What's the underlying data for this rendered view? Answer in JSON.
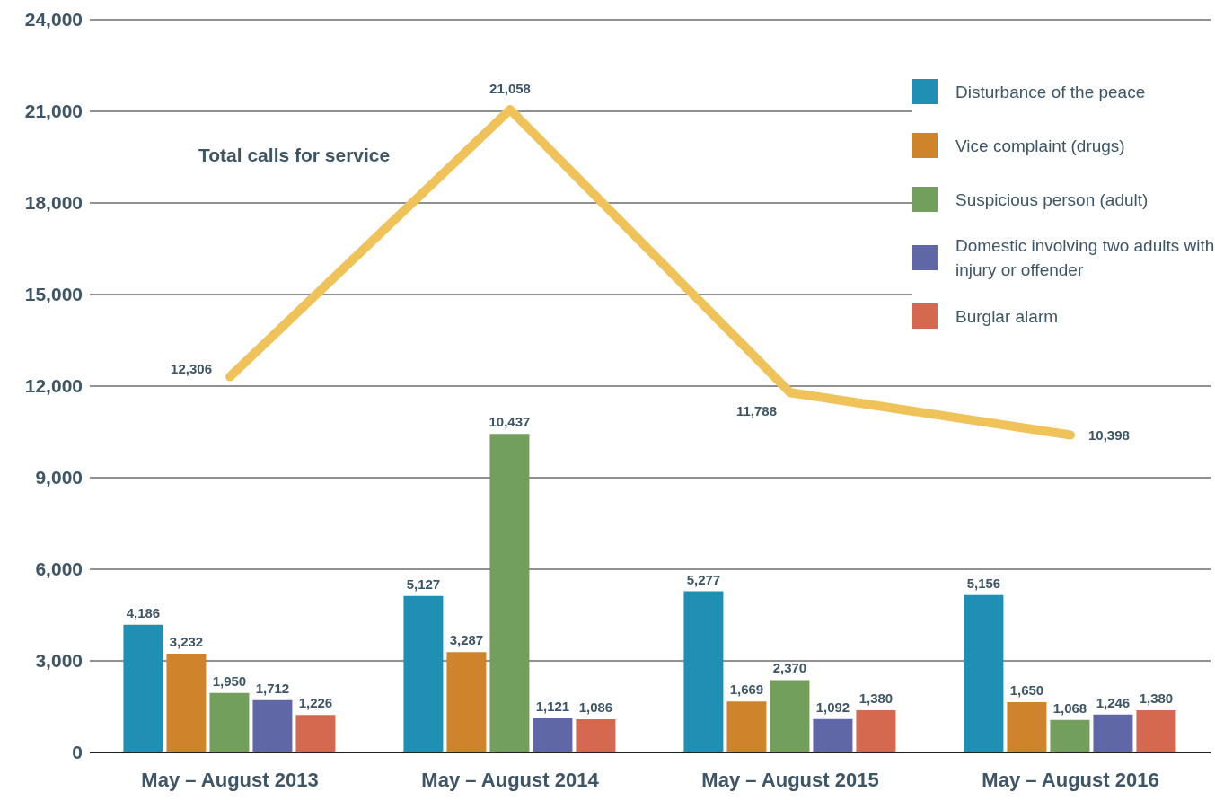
{
  "chart_data": {
    "type": "bar",
    "categories": [
      "May – August 2013",
      "May – August 2014",
      "May – August 2015",
      "May – August 2016"
    ],
    "series": [
      {
        "name": "Disturbance of the peace",
        "color": "#1f8fb3",
        "values": [
          4186,
          5127,
          5277,
          5156
        ],
        "value_labels": [
          "4,186",
          "5,127",
          "5,277",
          "5,156"
        ]
      },
      {
        "name": "Vice complaint (drugs)",
        "color": "#cf842b",
        "values": [
          3232,
          3287,
          1669,
          1650
        ],
        "value_labels": [
          "3,232",
          "3,287",
          "1,669",
          "1,650"
        ]
      },
      {
        "name": "Suspicious person (adult)",
        "color": "#72a05c",
        "values": [
          1950,
          10437,
          2370,
          1068
        ],
        "value_labels": [
          "1,950",
          "10,437",
          "2,370",
          "1,068"
        ]
      },
      {
        "name": "Domestic involving two adults with injury or offender",
        "color": "#5f67a6",
        "values": [
          1712,
          1121,
          1092,
          1246
        ],
        "value_labels": [
          "1,712",
          "1,121",
          "1,092",
          "1,246"
        ]
      },
      {
        "name": "Burglar alarm",
        "color": "#d5694f",
        "values": [
          1226,
          1086,
          1380,
          1380
        ],
        "value_labels": [
          "1,226",
          "1,086",
          "1,380",
          "1,380"
        ]
      },
      {
        "name": "Total calls for service",
        "type": "line",
        "color": "#f0c35a",
        "values": [
          12306,
          21058,
          11788,
          10398
        ],
        "value_labels": [
          "12,306",
          "21,058",
          "11,788",
          "10,398"
        ]
      }
    ],
    "ylim": [
      0,
      24000
    ],
    "yticks": [
      0,
      {
        "value": 3000,
        "label": "3,000"
      },
      {
        "value": 6000,
        "label": "6,000"
      },
      {
        "value": 9000,
        "label": "9,000"
      },
      {
        "value": 12000,
        "label": "12,000"
      },
      {
        "value": 15000,
        "label": "15,000"
      },
      {
        "value": 18000,
        "label": "18,000"
      },
      {
        "value": 21000,
        "label": "21,000"
      },
      {
        "value": 24000,
        "label": "24,000"
      }
    ],
    "grid": "y",
    "legend": "top right",
    "marker": "none"
  }
}
